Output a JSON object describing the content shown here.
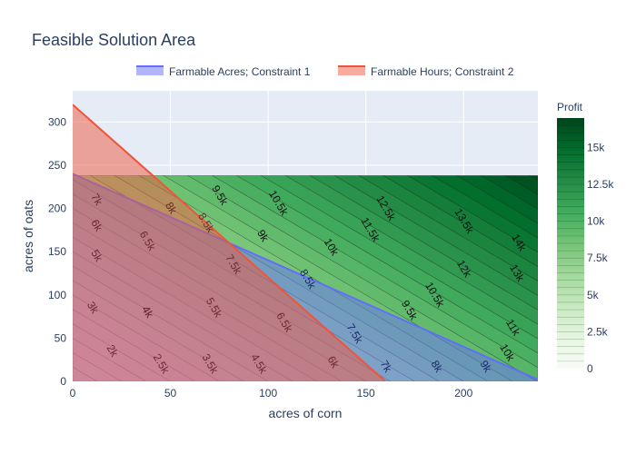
{
  "chart_data": {
    "type": "contour",
    "title": "Feasible Solution Area",
    "xlabel": "acres of corn",
    "ylabel": "acres of oats",
    "xlim": [
      0,
      238
    ],
    "ylim": [
      0,
      336
    ],
    "x_ticks": [
      0,
      50,
      100,
      150,
      200
    ],
    "y_ticks": [
      0,
      50,
      100,
      150,
      200,
      250,
      300
    ],
    "grid": true,
    "legend_position": "top",
    "contour": {
      "name": "Profit",
      "x_range": [
        0,
        238
      ],
      "y_range": [
        0,
        238
      ],
      "z_function": "40*x + 30*y",
      "z_range": [
        0,
        17000
      ],
      "colorbar_ticks": [
        0,
        2500,
        5000,
        7500,
        10000,
        12500,
        15000
      ],
      "colorbar_tick_labels": [
        "0",
        "2.5k",
        "5k",
        "7.5k",
        "10k",
        "12.5k",
        "15k"
      ],
      "level_labels": [
        {
          "label": "2k",
          "x": 20,
          "y": 35
        },
        {
          "label": "3k",
          "x": 10,
          "y": 85
        },
        {
          "label": "4k",
          "x": 38,
          "y": 80
        },
        {
          "label": "5k",
          "x": 12,
          "y": 145
        },
        {
          "label": "6k",
          "x": 12,
          "y": 180
        },
        {
          "label": "7k",
          "x": 12,
          "y": 210
        },
        {
          "label": "8k",
          "x": 50,
          "y": 200
        },
        {
          "label": "9.5k",
          "x": 75,
          "y": 215
        },
        {
          "label": "10.5k",
          "x": 105,
          "y": 206
        },
        {
          "label": "12.5k",
          "x": 160,
          "y": 200
        },
        {
          "label": "13.5k",
          "x": 200,
          "y": 185
        },
        {
          "label": "14k",
          "x": 228,
          "y": 160
        },
        {
          "label": "2.5k",
          "x": 45,
          "y": 20
        },
        {
          "label": "3.5k",
          "x": 70,
          "y": 20
        },
        {
          "label": "4.5k",
          "x": 95,
          "y": 20
        },
        {
          "label": "6k",
          "x": 133,
          "y": 22
        },
        {
          "label": "7k",
          "x": 160,
          "y": 17
        },
        {
          "label": "8k",
          "x": 186,
          "y": 17
        },
        {
          "label": "9k",
          "x": 211,
          "y": 17
        },
        {
          "label": "4k",
          "x": 38,
          "y": 80
        },
        {
          "label": "5.5k",
          "x": 72,
          "y": 85
        },
        {
          "label": "6.5k",
          "x": 108,
          "y": 68
        },
        {
          "label": "7.5k",
          "x": 144,
          "y": 55
        },
        {
          "label": "6.5k",
          "x": 38,
          "y": 162
        },
        {
          "label": "7.5k",
          "x": 82,
          "y": 135
        },
        {
          "label": "8.5k",
          "x": 68,
          "y": 183
        },
        {
          "label": "9k",
          "x": 97,
          "y": 168
        },
        {
          "label": "8.5k",
          "x": 120,
          "y": 118
        },
        {
          "label": "10k",
          "x": 132,
          "y": 155
        },
        {
          "label": "9.5k",
          "x": 172,
          "y": 82
        },
        {
          "label": "10.5k",
          "x": 185,
          "y": 100
        },
        {
          "label": "11.5k",
          "x": 152,
          "y": 175
        },
        {
          "label": "12k",
          "x": 200,
          "y": 130
        },
        {
          "label": "13k",
          "x": 227,
          "y": 125
        },
        {
          "label": "11k",
          "x": 225,
          "y": 62
        },
        {
          "label": "10k",
          "x": 222,
          "y": 33
        }
      ]
    },
    "series": [
      {
        "name": "Farmable Acres; Constraint 1",
        "fill": "tozeroy",
        "color": "#636efa",
        "x": [
          0,
          240
        ],
        "y": [
          240,
          0
        ]
      },
      {
        "name": "Farmable Hours; Constraint 2",
        "fill": "tozeroy",
        "color": "#ef553b",
        "x": [
          0,
          160
        ],
        "y": [
          320,
          0
        ]
      }
    ]
  }
}
